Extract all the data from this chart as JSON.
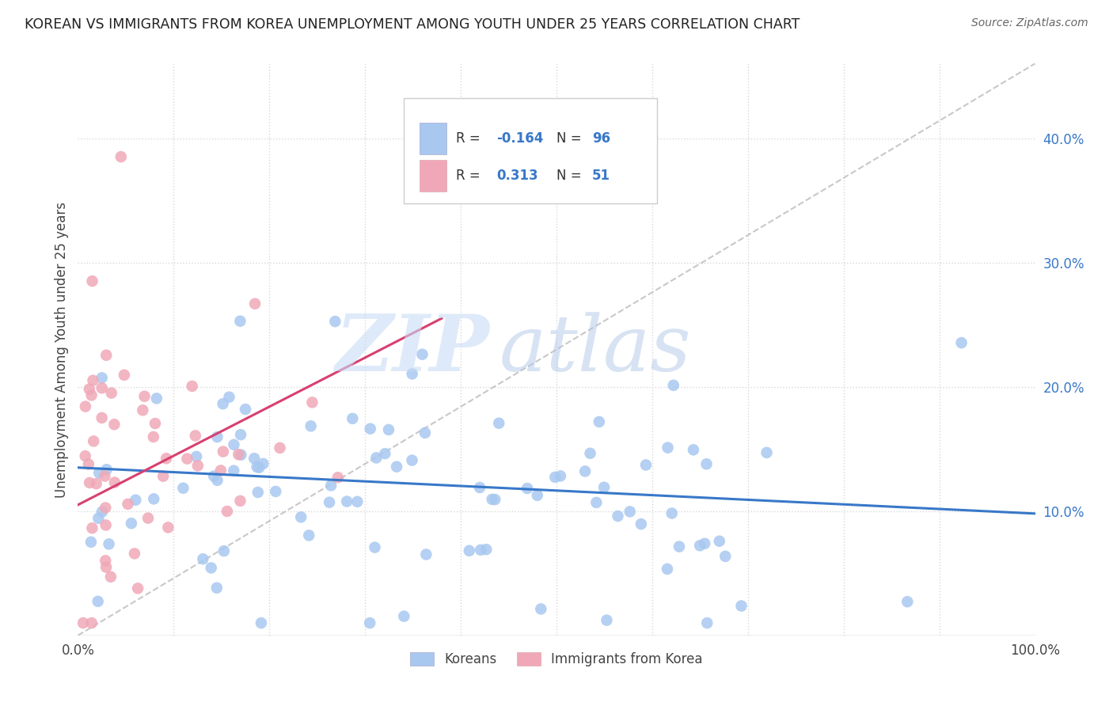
{
  "title": "KOREAN VS IMMIGRANTS FROM KOREA UNEMPLOYMENT AMONG YOUTH UNDER 25 YEARS CORRELATION CHART",
  "source": "Source: ZipAtlas.com",
  "ylabel": "Unemployment Among Youth under 25 years",
  "series": [
    {
      "name": "Koreans",
      "color": "#a8c8f0",
      "line_color": "#3878c8",
      "R": -0.164,
      "N": 96,
      "trend_x0": 0.0,
      "trend_y0": 0.135,
      "trend_x1": 1.0,
      "trend_y1": 0.098
    },
    {
      "name": "Immigrants from Korea",
      "color": "#f0a8b8",
      "line_color": "#d84070",
      "R": 0.313,
      "N": 51,
      "trend_x0": 0.0,
      "trend_y0": 0.105,
      "trend_x1": 0.38,
      "trend_y1": 0.255
    }
  ],
  "xlim": [
    0.0,
    1.0
  ],
  "ylim": [
    0.0,
    0.46
  ],
  "x_tick_left_label": "0.0%",
  "x_tick_right_label": "100.0%",
  "y_ticks_right": [
    0.1,
    0.2,
    0.3,
    0.4
  ],
  "y_tick_labels_right": [
    "10.0%",
    "20.0%",
    "30.0%",
    "40.0%"
  ],
  "watermark_zip": "ZIP",
  "watermark_atlas": "atlas",
  "background_color": "#ffffff",
  "grid_color": "#d8d8d8",
  "seed_koreans": 7,
  "seed_immigrants": 99
}
